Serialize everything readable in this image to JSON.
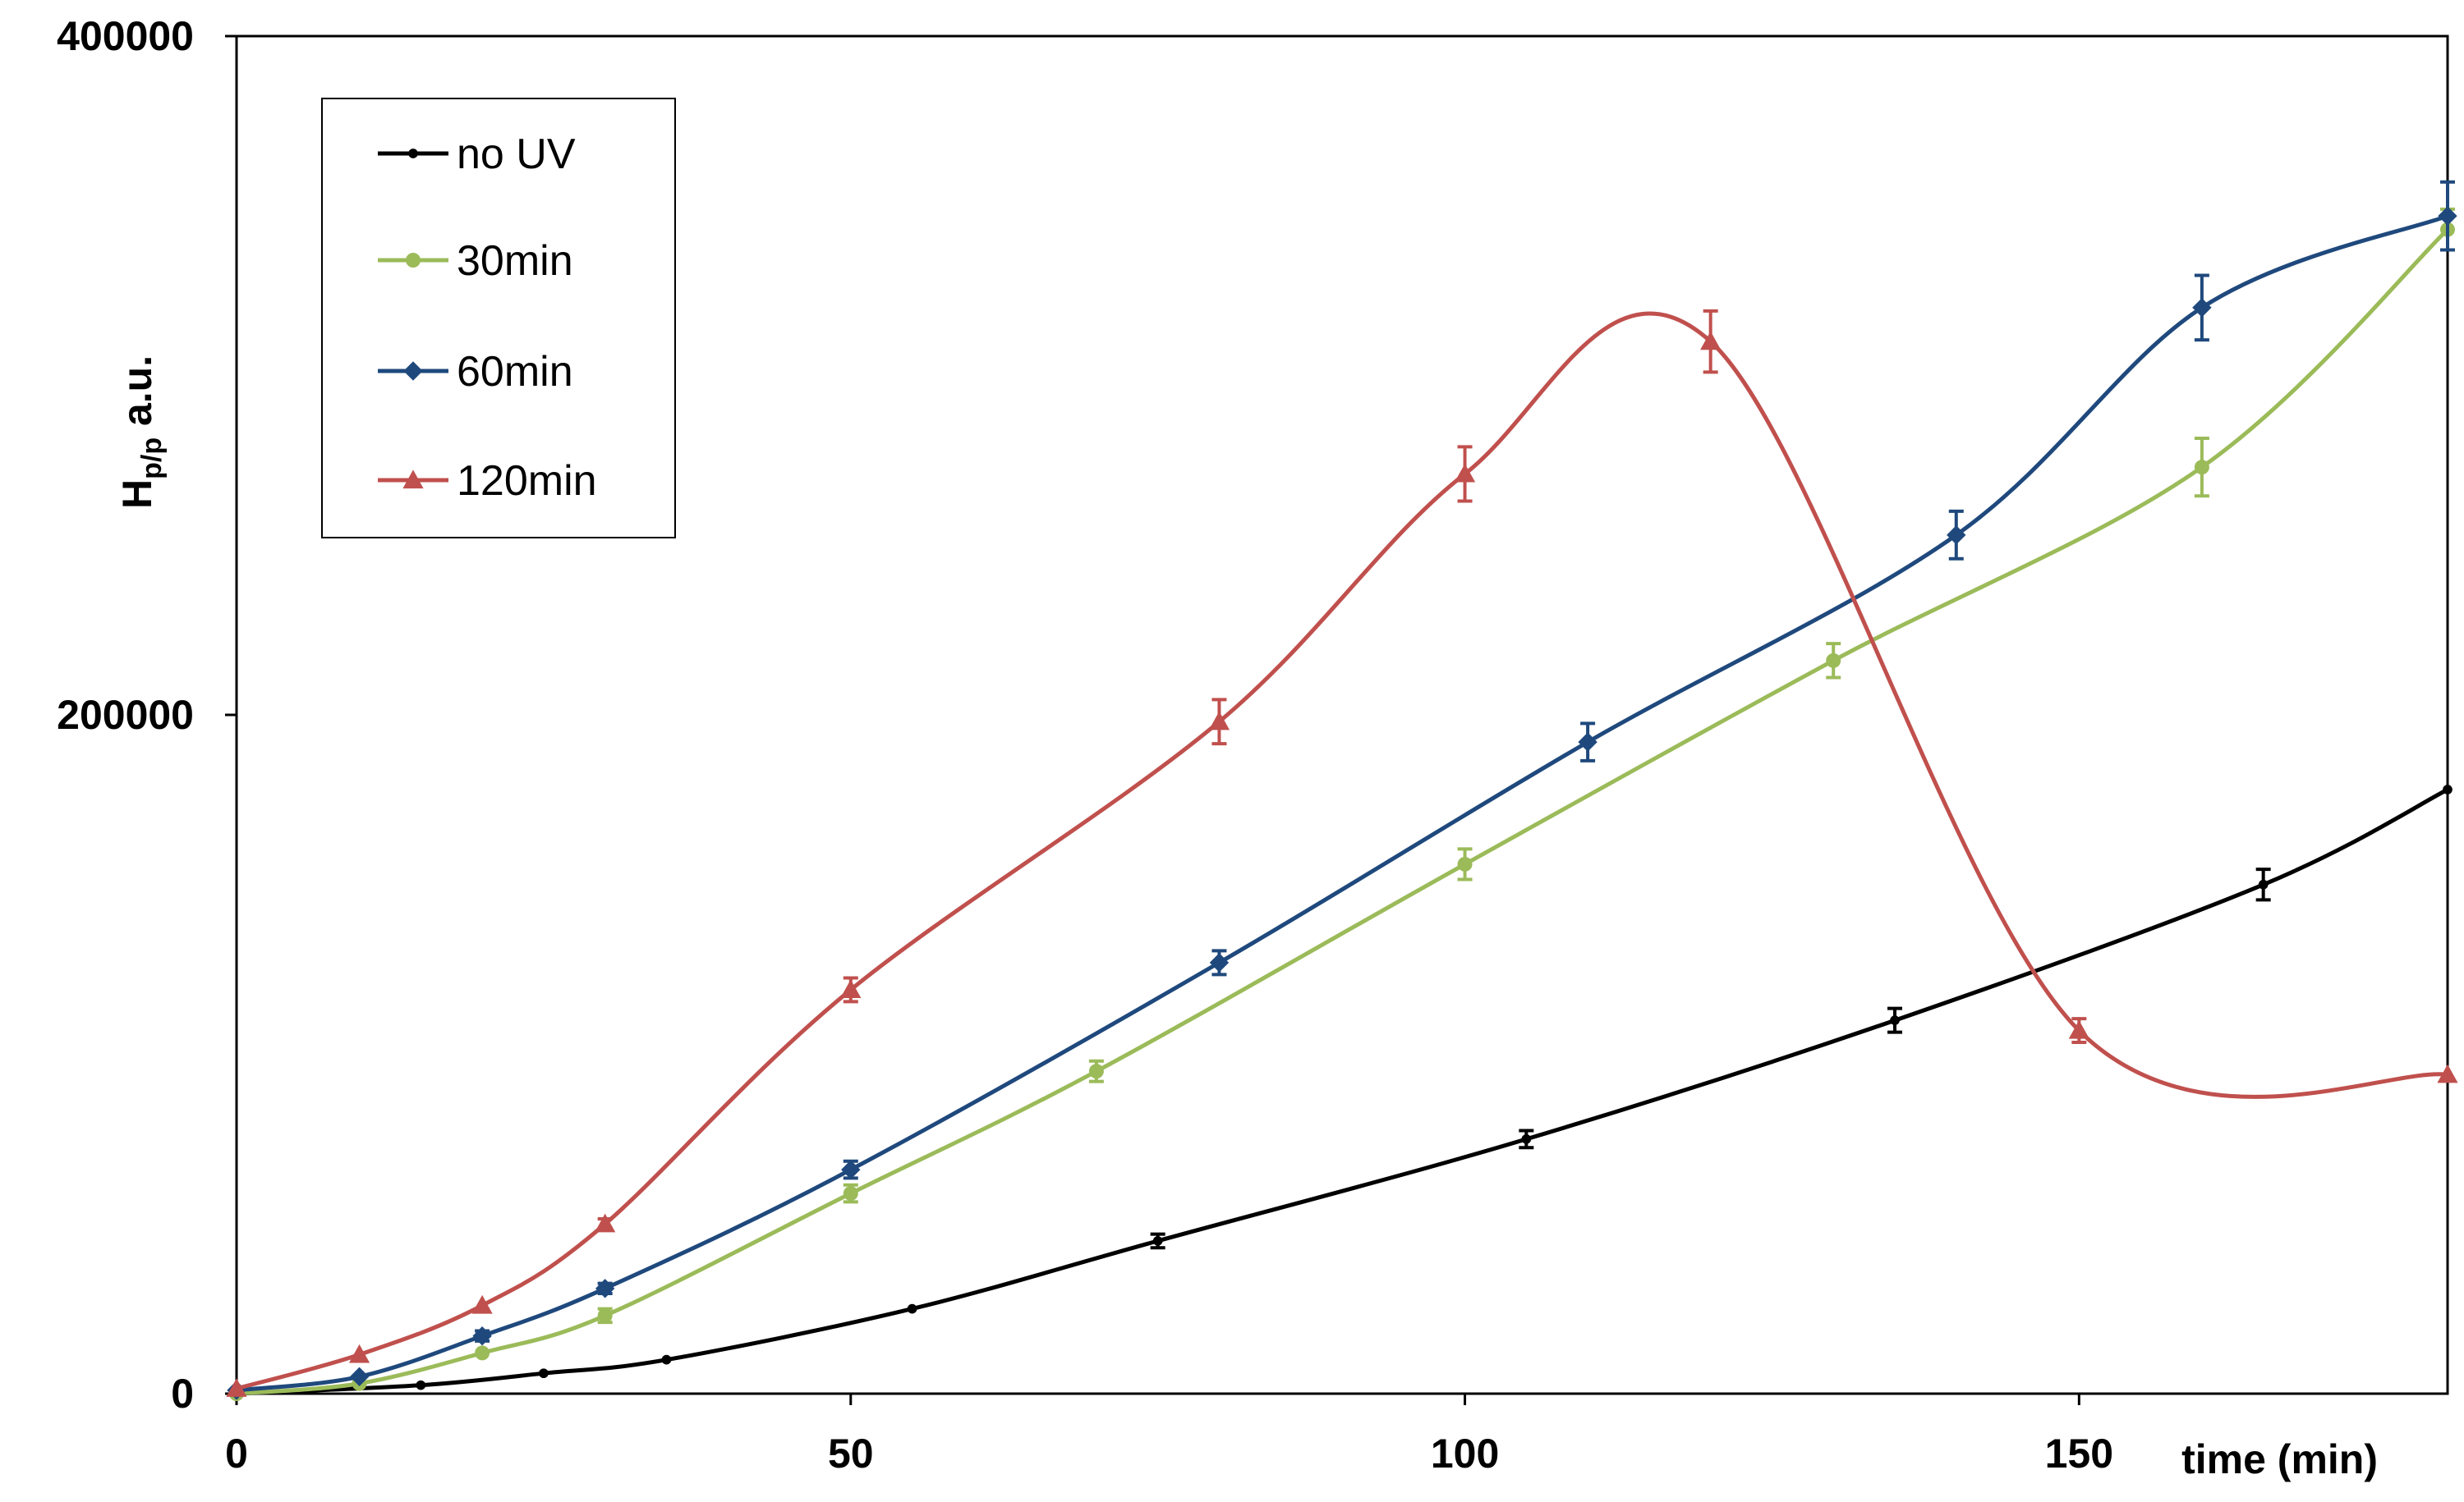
{
  "chart_data": {
    "type": "line",
    "title": "",
    "xlabel": "time (min)",
    "ylabel_main": "H",
    "ylabel_sub": "p/p",
    "ylabel_suffix": " a.u.",
    "xlim": [
      0,
      180
    ],
    "ylim": [
      0,
      400000
    ],
    "x_ticks": [
      0,
      50,
      100,
      150
    ],
    "x_tick_labels": [
      "0",
      "50",
      "100",
      "150"
    ],
    "y_ticks": [
      0,
      200000,
      400000
    ],
    "y_tick_labels": [
      "0",
      "200000",
      "400000"
    ],
    "grid": false,
    "legend_position": "top-left",
    "series": [
      {
        "name": "no UV",
        "color": "#000000",
        "marker": "dot",
        "x": [
          0,
          15,
          25,
          35,
          55,
          75,
          105,
          135,
          165,
          180
        ],
        "y": [
          0,
          2500,
          6000,
          10000,
          25000,
          45000,
          75000,
          110000,
          150000,
          178000
        ],
        "err": [
          0,
          0,
          0,
          0,
          0,
          2000,
          2500,
          3500,
          4500,
          0
        ]
      },
      {
        "name": "30min",
        "color": "#9BBB59",
        "marker": "circle",
        "x": [
          0,
          10,
          20,
          30,
          50,
          70,
          100,
          130,
          160,
          180
        ],
        "y": [
          0,
          3000,
          12000,
          23000,
          59000,
          95000,
          156000,
          216000,
          273000,
          343000
        ],
        "err": [
          0,
          0,
          0,
          2000,
          2500,
          3000,
          4500,
          5000,
          8500,
          6000
        ]
      },
      {
        "name": "60min",
        "color": "#1F497D",
        "marker": "diamond",
        "x": [
          0,
          10,
          20,
          30,
          50,
          80,
          110,
          140,
          160,
          180
        ],
        "y": [
          1000,
          5000,
          17000,
          31000,
          66000,
          127000,
          192000,
          253000,
          320000,
          347000
        ],
        "err": [
          0,
          0,
          1500,
          1500,
          2500,
          3500,
          5500,
          7000,
          9500,
          10000
        ]
      },
      {
        "name": "120min",
        "color": "#C0504D",
        "marker": "triangle",
        "x": [
          0,
          10,
          20,
          30,
          50,
          80,
          100,
          120,
          150,
          180
        ],
        "y": [
          1500,
          11500,
          26000,
          50000,
          119000,
          198000,
          271000,
          310000,
          107000,
          94000
        ],
        "err": [
          0,
          0,
          0,
          1500,
          3500,
          6500,
          8000,
          9000,
          3500,
          0
        ]
      }
    ]
  }
}
